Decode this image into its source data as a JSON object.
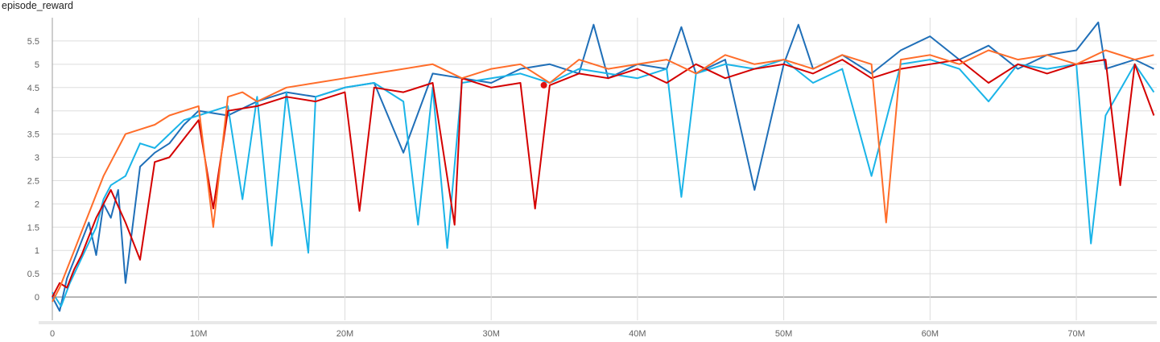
{
  "chart_data": {
    "type": "line",
    "title": "episode_reward",
    "xlabel": "",
    "ylabel": "",
    "xlim": [
      0,
      75500000
    ],
    "ylim": [
      -0.5,
      6.0
    ],
    "x_ticks": [
      0,
      10000000,
      20000000,
      30000000,
      40000000,
      50000000,
      60000000,
      70000000
    ],
    "x_tick_labels": [
      "0",
      "10M",
      "20M",
      "30M",
      "40M",
      "50M",
      "60M",
      "70M"
    ],
    "y_ticks": [
      0,
      0.5,
      1,
      1.5,
      2,
      2.5,
      3,
      3.5,
      4,
      4.5,
      5,
      5.5
    ],
    "y_tick_labels": [
      "0",
      "0.5",
      "1",
      "1.5",
      "2",
      "2.5",
      "3",
      "3.5",
      "4",
      "4.5",
      "5",
      "5.5"
    ],
    "grid": true,
    "highlight_point": {
      "x": 33600000,
      "y": 4.55,
      "color": "#e01010"
    },
    "series": [
      {
        "color": "#1f6fb8",
        "x": [
          0,
          500000,
          1000000,
          1500000,
          2000000,
          2500000,
          3000000,
          3500000,
          4000000,
          4500000,
          5000000,
          6000000,
          7000000,
          8000000,
          9000000,
          10000000,
          12000000,
          14000000,
          16000000,
          18000000,
          20000000,
          22000000,
          24000000,
          26000000,
          28000000,
          30000000,
          32000000,
          34000000,
          36000000,
          37000000,
          38000000,
          40000000,
          42000000,
          43000000,
          44000000,
          46000000,
          48000000,
          50000000,
          51000000,
          52000000,
          54000000,
          56000000,
          58000000,
          60000000,
          62000000,
          64000000,
          66000000,
          68000000,
          70000000,
          71500000,
          72000000,
          74000000,
          75300000
        ],
        "y": [
          0.0,
          -0.3,
          0.4,
          0.8,
          1.2,
          1.6,
          0.9,
          2.0,
          1.7,
          2.3,
          0.3,
          2.8,
          3.1,
          3.3,
          3.7,
          4.0,
          3.9,
          4.2,
          4.4,
          4.3,
          4.5,
          4.6,
          3.1,
          4.8,
          4.7,
          4.6,
          4.9,
          5.0,
          4.8,
          5.85,
          4.7,
          5.0,
          4.9,
          5.8,
          4.8,
          5.1,
          2.3,
          5.0,
          5.85,
          4.9,
          5.2,
          4.8,
          5.3,
          5.6,
          5.1,
          5.4,
          4.9,
          5.2,
          5.3,
          5.9,
          4.9,
          5.1,
          4.9
        ]
      },
      {
        "color": "#1ab4e8",
        "x": [
          0,
          600000,
          1200000,
          1800000,
          2400000,
          3000000,
          3500000,
          4000000,
          5000000,
          6000000,
          7000000,
          8000000,
          9000000,
          10000000,
          12000000,
          13000000,
          14000000,
          15000000,
          16000000,
          17500000,
          18000000,
          20000000,
          22000000,
          24000000,
          25000000,
          26000000,
          27000000,
          28000000,
          30000000,
          32000000,
          34000000,
          36000000,
          38000000,
          40000000,
          42000000,
          43000000,
          44000000,
          46000000,
          48000000,
          50000000,
          52000000,
          54000000,
          56000000,
          58000000,
          60000000,
          62000000,
          64000000,
          66000000,
          68000000,
          70000000,
          71000000,
          72000000,
          74000000,
          75300000
        ],
        "y": [
          0.1,
          -0.2,
          0.3,
          0.7,
          1.1,
          1.5,
          2.1,
          2.4,
          2.6,
          3.3,
          3.2,
          3.5,
          3.8,
          3.9,
          4.1,
          2.1,
          4.3,
          1.1,
          4.4,
          0.95,
          4.3,
          4.5,
          4.6,
          4.2,
          1.55,
          4.5,
          1.05,
          4.6,
          4.7,
          4.8,
          4.6,
          4.9,
          4.8,
          4.7,
          4.9,
          2.15,
          4.8,
          5.0,
          4.9,
          5.1,
          4.6,
          4.9,
          2.6,
          5.0,
          5.1,
          4.9,
          4.2,
          5.0,
          4.9,
          5.0,
          1.15,
          3.9,
          5.0,
          4.4
        ]
      },
      {
        "color": "#d40000",
        "x": [
          0,
          500000,
          1000000,
          1500000,
          2000000,
          2500000,
          3000000,
          3500000,
          4000000,
          5000000,
          6000000,
          7000000,
          8000000,
          9000000,
          10000000,
          11000000,
          12000000,
          14000000,
          16000000,
          18000000,
          20000000,
          21000000,
          22000000,
          24000000,
          26000000,
          27500000,
          28000000,
          30000000,
          32000000,
          33000000,
          34000000,
          36000000,
          38000000,
          40000000,
          42000000,
          44000000,
          46000000,
          48000000,
          50000000,
          52000000,
          54000000,
          56000000,
          58000000,
          60000000,
          62000000,
          64000000,
          66000000,
          68000000,
          70000000,
          72000000,
          73000000,
          74000000,
          75300000
        ],
        "y": [
          0.0,
          0.3,
          0.2,
          0.6,
          0.9,
          1.3,
          1.7,
          2.0,
          2.3,
          1.6,
          0.8,
          2.9,
          3.0,
          3.4,
          3.8,
          1.9,
          4.0,
          4.1,
          4.3,
          4.2,
          4.4,
          1.85,
          4.5,
          4.4,
          4.6,
          1.55,
          4.7,
          4.5,
          4.6,
          1.9,
          4.55,
          4.8,
          4.7,
          4.9,
          4.6,
          5.0,
          4.7,
          4.9,
          5.0,
          4.8,
          5.1,
          4.7,
          4.9,
          5.0,
          5.1,
          4.6,
          5.0,
          4.8,
          5.0,
          5.1,
          2.4,
          5.0,
          3.9
        ]
      },
      {
        "color": "#ff6d2a",
        "x": [
          0,
          500000,
          1000000,
          1500000,
          2000000,
          2500000,
          3000000,
          3500000,
          4000000,
          5000000,
          6000000,
          7000000,
          8000000,
          9000000,
          10000000,
          11000000,
          12000000,
          13000000,
          14000000,
          16000000,
          18000000,
          20000000,
          22000000,
          24000000,
          26000000,
          28000000,
          30000000,
          32000000,
          34000000,
          36000000,
          38000000,
          40000000,
          42000000,
          44000000,
          46000000,
          48000000,
          50000000,
          52000000,
          54000000,
          56000000,
          57000000,
          58000000,
          60000000,
          62000000,
          64000000,
          66000000,
          68000000,
          70000000,
          72000000,
          74000000,
          75300000
        ],
        "y": [
          -0.1,
          0.2,
          0.6,
          1.0,
          1.4,
          1.8,
          2.2,
          2.6,
          2.9,
          3.5,
          3.6,
          3.7,
          3.9,
          4.0,
          4.1,
          1.5,
          4.3,
          4.4,
          4.2,
          4.5,
          4.6,
          4.7,
          4.8,
          4.9,
          5.0,
          4.7,
          4.9,
          5.0,
          4.6,
          5.1,
          4.9,
          5.0,
          5.1,
          4.8,
          5.2,
          5.0,
          5.1,
          4.9,
          5.2,
          5.0,
          1.6,
          5.1,
          5.2,
          5.0,
          5.3,
          5.1,
          5.2,
          5.0,
          5.3,
          5.1,
          5.2
        ]
      }
    ]
  }
}
